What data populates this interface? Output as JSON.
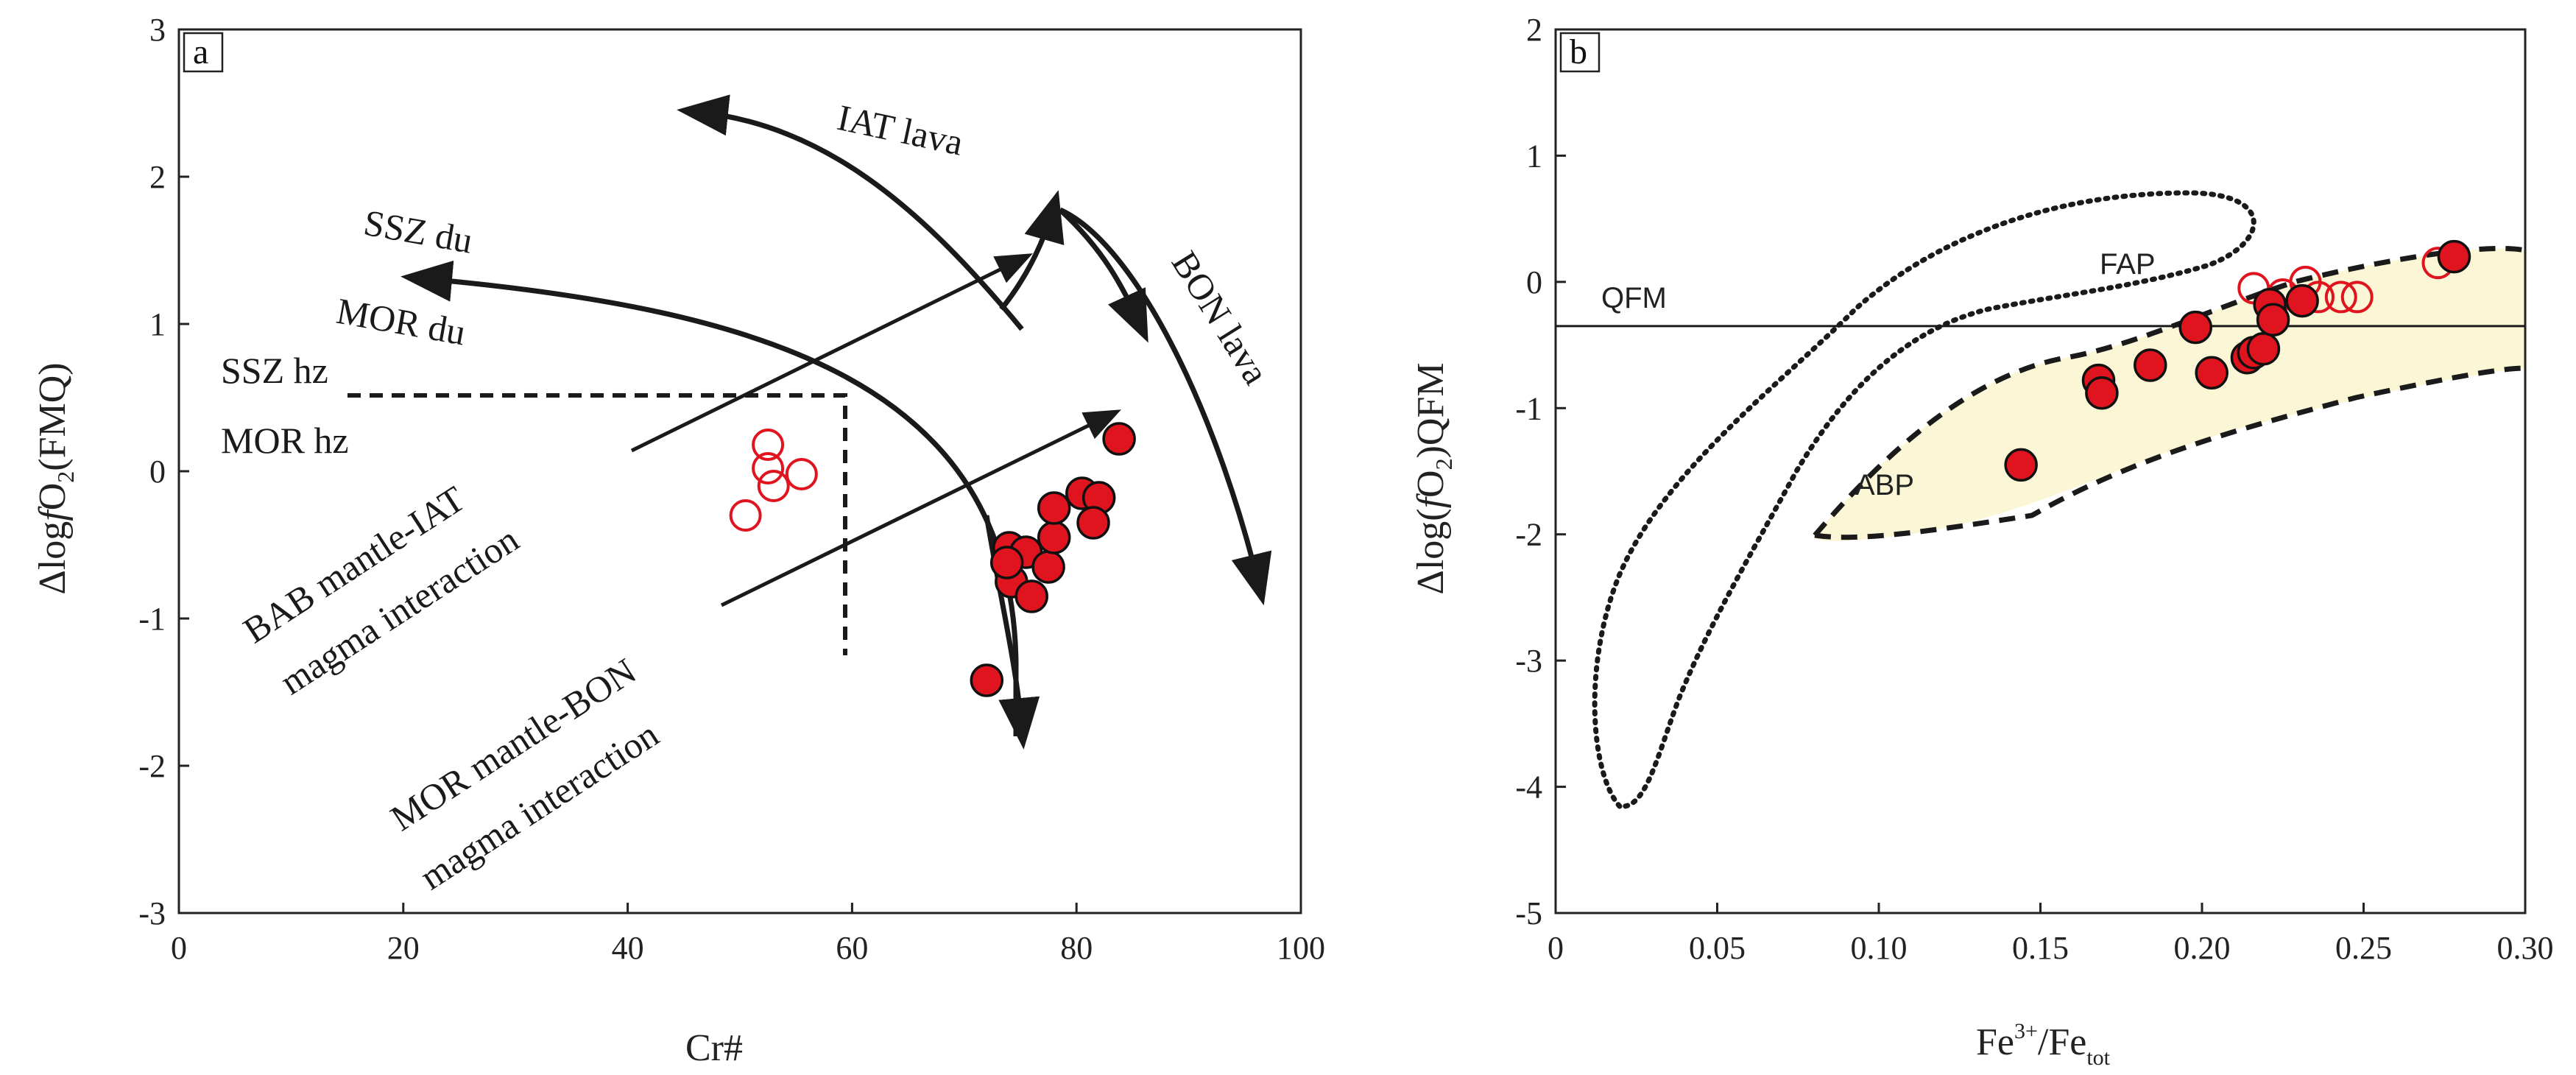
{
  "chart_data": [
    {
      "type": "scatter",
      "panel_label": "a",
      "xlabel": "Cr#",
      "ylabel_parts": [
        "Δlog",
        "f",
        "O",
        "2",
        "(FMQ)"
      ],
      "xlim": [
        0,
        100
      ],
      "ylim": [
        -3,
        3
      ],
      "xticks": [
        "0",
        "20",
        "40",
        "60",
        "80",
        "100"
      ],
      "yticks": [
        "3",
        "2",
        "1",
        "0",
        "-1",
        "-2",
        "-3"
      ],
      "filled_points": [
        {
          "x": 74,
          "y": -0.52
        },
        {
          "x": 75.5,
          "y": -0.55
        },
        {
          "x": 74.2,
          "y": -0.75
        },
        {
          "x": 73.8,
          "y": -0.62
        },
        {
          "x": 76,
          "y": -0.85
        },
        {
          "x": 77.5,
          "y": -0.65
        },
        {
          "x": 78,
          "y": -0.45
        },
        {
          "x": 78,
          "y": -0.25
        },
        {
          "x": 80.5,
          "y": -0.15
        },
        {
          "x": 82,
          "y": -0.18
        },
        {
          "x": 81.5,
          "y": -0.35
        },
        {
          "x": 83.8,
          "y": 0.22
        },
        {
          "x": 72,
          "y": -1.42
        }
      ],
      "open_points": [
        {
          "x": 52.5,
          "y": 0.18
        },
        {
          "x": 52.5,
          "y": 0.02
        },
        {
          "x": 53,
          "y": -0.1
        },
        {
          "x": 55.5,
          "y": -0.02
        },
        {
          "x": 50.5,
          "y": -0.3
        }
      ],
      "labels": {
        "iat_lava": "IAT  lava",
        "bon_lava": "BON  lava",
        "ssz_du": "SSZ  du",
        "mor_du": "MOR  du",
        "ssz_hz": "SSZ  hz",
        "mor_hz": "MOR  hz",
        "bab_line1": "BAB  mantle-IAT",
        "bab_line2": "magma interaction",
        "mor_line1": "MOR  mantle-BON",
        "mor_line2": "magma interaction"
      }
    },
    {
      "type": "scatter",
      "panel_label": "b",
      "xlabel_parts": [
        "Fe",
        "3+",
        "/Fe",
        "tot"
      ],
      "ylabel_parts": [
        "Δlog(",
        "f",
        "O",
        "2",
        ")QFM"
      ],
      "xlim": [
        0,
        0.3
      ],
      "ylim": [
        -5,
        2
      ],
      "xticks": [
        "0",
        "0.05",
        "0.10",
        "0.15",
        "0.20",
        "0.25",
        "0.30"
      ],
      "yticks": [
        "2",
        "1",
        "0",
        "-1",
        "-2",
        "-3",
        "-4",
        "-5"
      ],
      "qfm_y": -0.35,
      "filled_points": [
        {
          "x": 0.144,
          "y": -1.45
        },
        {
          "x": 0.168,
          "y": -0.78
        },
        {
          "x": 0.169,
          "y": -0.88
        },
        {
          "x": 0.184,
          "y": -0.66
        },
        {
          "x": 0.198,
          "y": -0.36
        },
        {
          "x": 0.203,
          "y": -0.72
        },
        {
          "x": 0.214,
          "y": -0.6
        },
        {
          "x": 0.216,
          "y": -0.56
        },
        {
          "x": 0.219,
          "y": -0.53
        },
        {
          "x": 0.221,
          "y": -0.18
        },
        {
          "x": 0.222,
          "y": -0.3
        },
        {
          "x": 0.231,
          "y": -0.15
        },
        {
          "x": 0.278,
          "y": 0.2
        }
      ],
      "open_points": [
        {
          "x": 0.216,
          "y": -0.05
        },
        {
          "x": 0.225,
          "y": -0.1
        },
        {
          "x": 0.232,
          "y": 0
        },
        {
          "x": 0.236,
          "y": -0.12
        },
        {
          "x": 0.243,
          "y": -0.12
        },
        {
          "x": 0.248,
          "y": -0.12
        },
        {
          "x": 0.273,
          "y": 0.15
        }
      ],
      "labels": {
        "fap": "FAP",
        "abp": "ABP",
        "qfm": "QFM"
      }
    }
  ],
  "colors": {
    "marker_fill": "#e0141e",
    "open_marker": "#e0141e",
    "abp_fill": "#fbf7d6",
    "ink": "#1a1a1a"
  }
}
